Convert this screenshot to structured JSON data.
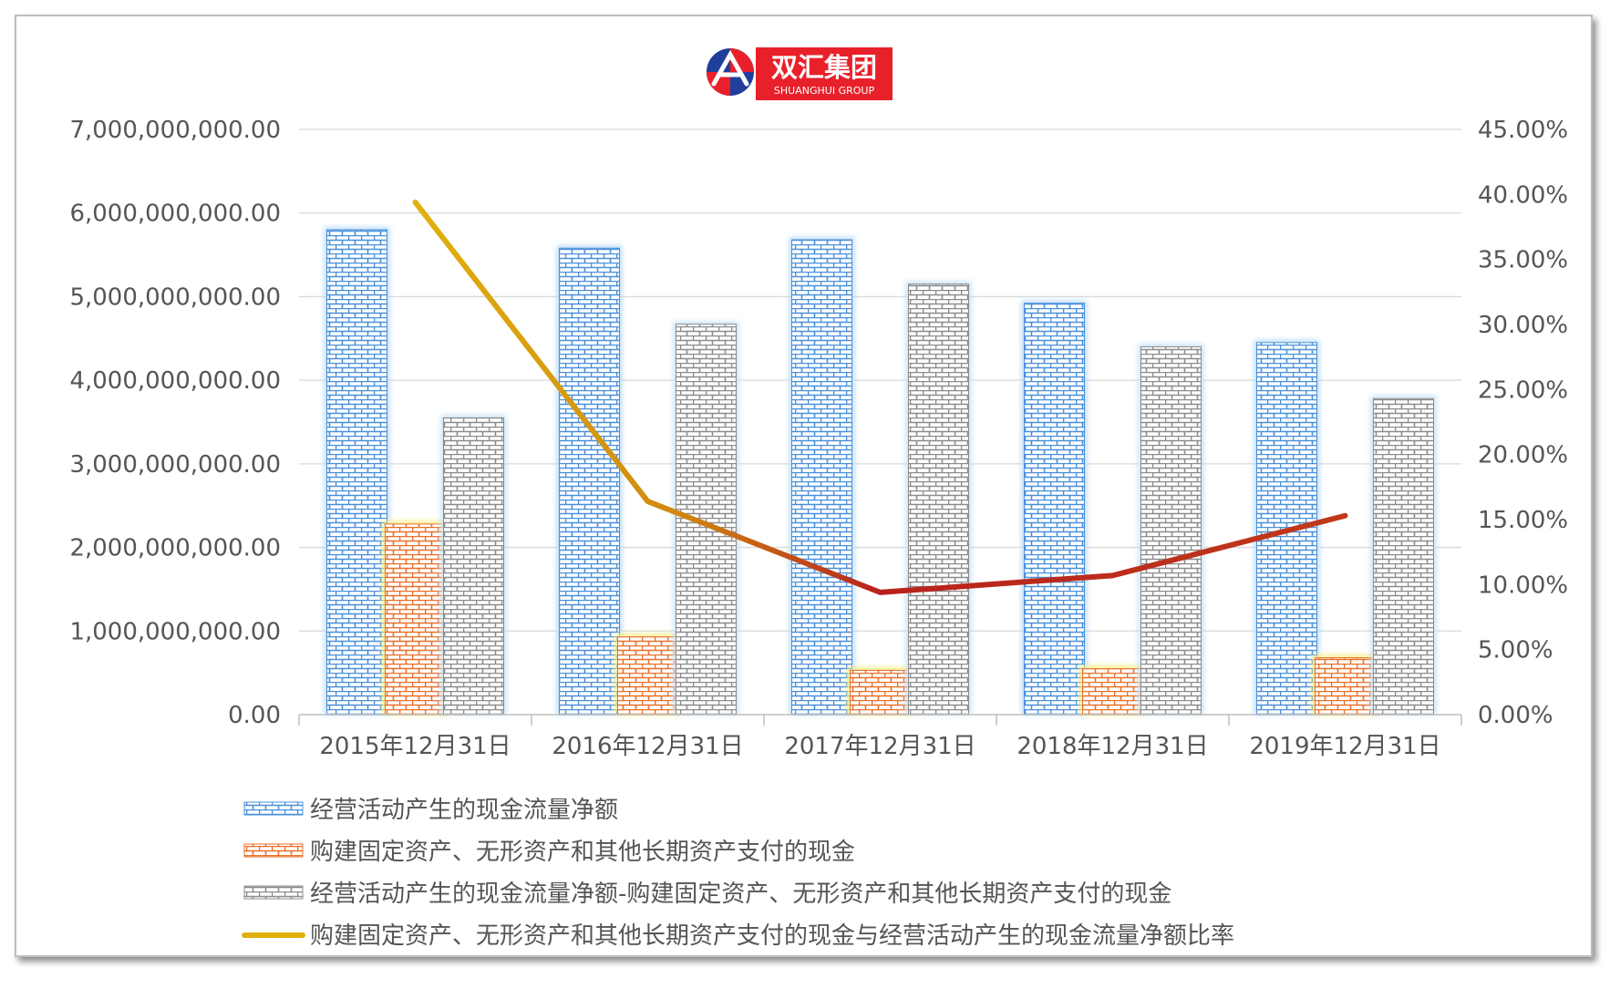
{
  "logo": {
    "cn": "双汇集团",
    "en": "SHUANGHUI GROUP"
  },
  "chart_data": {
    "type": "bar",
    "categories": [
      "2015年12月31日",
      "2016年12月31日",
      "2017年12月31日",
      "2018年12月31日",
      "2019年12月31日"
    ],
    "series": [
      {
        "name": "经营活动产生的现金流量净额",
        "kind": "bar",
        "axis": "left",
        "values": [
          5800000000,
          5580000000,
          5680000000,
          4920000000,
          4450000000
        ]
      },
      {
        "name": "购建固定资产、无形资产和其他长期资产支付的现金",
        "kind": "bar",
        "axis": "left",
        "values": [
          2280000000,
          930000000,
          530000000,
          550000000,
          680000000
        ]
      },
      {
        "name": "经营活动产生的现金流量净额-购建固定资产、无形资产和其他长期资产支付的现金",
        "kind": "bar",
        "axis": "left",
        "values": [
          3550000000,
          4670000000,
          5150000000,
          4400000000,
          3780000000
        ]
      },
      {
        "name": "购建固定资产、无形资产和其他长期资产支付的现金与经营活动产生的现金流量净额比率",
        "kind": "line",
        "axis": "right",
        "values": [
          0.394,
          0.164,
          0.094,
          0.107,
          0.153
        ]
      }
    ],
    "y_left": {
      "min": 0,
      "max": 7000000000,
      "ticks": [
        "0.00",
        "1,000,000,000.00",
        "2,000,000,000.00",
        "3,000,000,000.00",
        "4,000,000,000.00",
        "5,000,000,000.00",
        "6,000,000,000.00",
        "7,000,000,000.00"
      ]
    },
    "y_right": {
      "min": 0,
      "max": 0.45,
      "ticks": [
        "0.00%",
        "5.00%",
        "10.00%",
        "15.00%",
        "20.00%",
        "25.00%",
        "30.00%",
        "35.00%",
        "40.00%",
        "45.00%"
      ]
    },
    "grid": true,
    "legend_position": "bottom",
    "colors": {
      "series1": "#4a90d9",
      "series2": "#e8702a",
      "series3": "#8c8c8c",
      "line_start": "#e0b10e",
      "line_end": "#b8221c",
      "glow1": "#bcdcf7",
      "glow2": "#f8f080",
      "glow3": "#c6e2f7",
      "text": "#555555",
      "gridline": "#d9d9d9",
      "logo_red": "#e8202a",
      "logo_blue": "#1f3f9a"
    }
  }
}
